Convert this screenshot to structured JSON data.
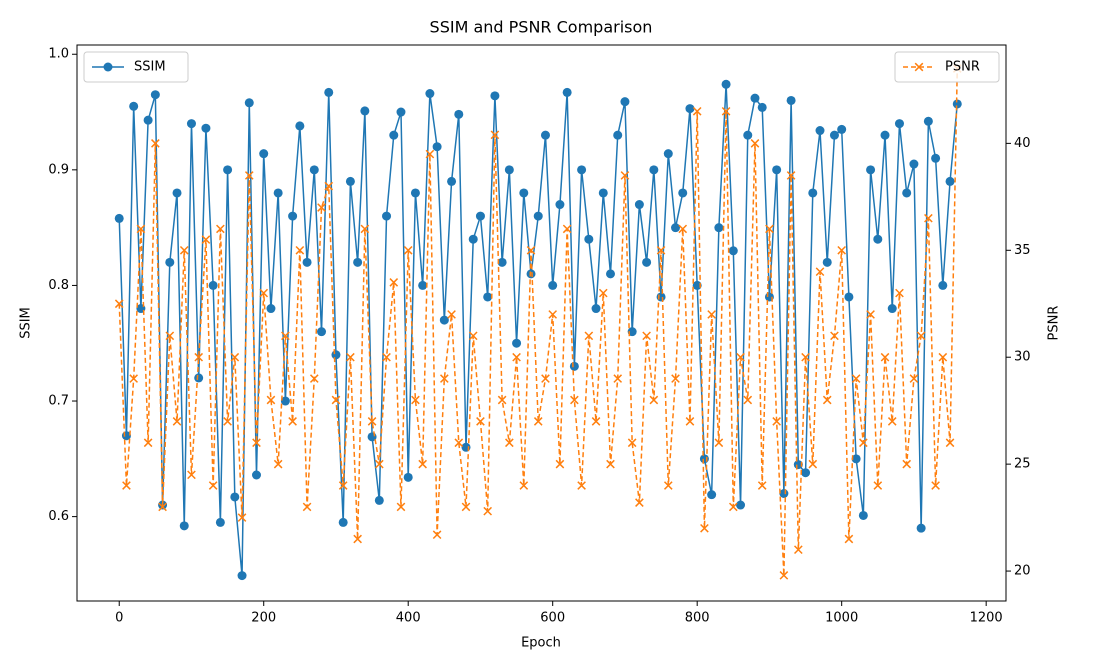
{
  "chart_data": {
    "type": "line",
    "title": "SSIM and PSNR Comparison",
    "xlabel": "Epoch",
    "ylabel": "SSIM",
    "y2label": "PSNR",
    "x": [
      0,
      10,
      20,
      30,
      40,
      50,
      60,
      70,
      80,
      90,
      100,
      110,
      120,
      130,
      140,
      150,
      160,
      170,
      180,
      190,
      200,
      210,
      220,
      230,
      240,
      250,
      260,
      270,
      280,
      290,
      300,
      310,
      320,
      330,
      340,
      350,
      360,
      370,
      380,
      390,
      400,
      410,
      420,
      430,
      440,
      450,
      460,
      470,
      480,
      490,
      500,
      510,
      520,
      530,
      540,
      550,
      560,
      570,
      580,
      590,
      600,
      610,
      620,
      630,
      640,
      650,
      660,
      670,
      680,
      690,
      700,
      710,
      720,
      730,
      740,
      750,
      760,
      770,
      780,
      790,
      800,
      810,
      820,
      830,
      840,
      850,
      860,
      870,
      880,
      890,
      900,
      910,
      920,
      930,
      940,
      950,
      960,
      970,
      980,
      990,
      1000,
      1010,
      1020,
      1030,
      1040,
      1050,
      1060,
      1070,
      1080,
      1090,
      1100,
      1110,
      1120,
      1130,
      1140,
      1150,
      1160
    ],
    "series": [
      {
        "name": "SSIM",
        "color": "#1f77b4",
        "marker": "o",
        "linestyle": "solid",
        "axis": "y",
        "legend_loc": "upper left",
        "values": [
          0.858,
          0.67,
          0.955,
          0.78,
          0.943,
          0.965,
          0.61,
          0.82,
          0.88,
          0.592,
          0.94,
          0.72,
          0.936,
          0.8,
          0.595,
          0.9,
          0.617,
          0.549,
          0.958,
          0.636,
          0.914,
          0.78,
          0.88,
          0.7,
          0.86,
          0.938,
          0.82,
          0.9,
          0.76,
          0.967,
          0.74,
          0.595,
          0.89,
          0.82,
          0.951,
          0.669,
          0.614,
          0.86,
          0.93,
          0.95,
          0.634,
          0.88,
          0.8,
          0.966,
          0.92,
          0.77,
          0.89,
          0.948,
          0.66,
          0.84,
          0.86,
          0.79,
          0.964,
          0.82,
          0.9,
          0.75,
          0.88,
          0.81,
          0.86,
          0.93,
          0.8,
          0.87,
          0.967,
          0.73,
          0.9,
          0.84,
          0.78,
          0.88,
          0.81,
          0.93,
          0.959,
          0.76,
          0.87,
          0.82,
          0.9,
          0.79,
          0.914,
          0.85,
          0.88,
          0.953,
          0.8,
          0.65,
          0.619,
          0.85,
          0.974,
          0.83,
          0.61,
          0.93,
          0.962,
          0.954,
          0.79,
          0.9,
          0.62,
          0.96,
          0.645,
          0.638,
          0.88,
          0.934,
          0.82,
          0.93,
          0.935,
          0.79,
          0.65,
          0.601,
          0.9,
          0.84,
          0.93,
          0.78,
          0.94,
          0.88,
          0.905,
          0.59,
          0.942,
          0.91,
          0.8,
          0.89,
          0.957
        ]
      },
      {
        "name": "PSNR",
        "color": "#ff7f0e",
        "marker": "x",
        "linestyle": "dashed",
        "axis": "y2",
        "legend_loc": "upper right",
        "values": [
          32.5,
          24,
          29,
          36,
          26,
          40,
          23,
          31,
          27,
          35,
          24.5,
          30,
          35.5,
          24,
          36,
          27,
          30,
          22.5,
          38.5,
          26,
          33,
          28,
          25,
          31,
          27,
          35,
          23,
          29,
          37,
          38,
          28,
          24,
          30,
          21.5,
          36,
          27,
          25,
          30,
          33.5,
          23,
          35,
          28,
          25,
          39.5,
          21.7,
          29,
          32,
          26,
          23,
          31,
          27,
          22.8,
          40.4,
          28,
          26,
          30,
          24,
          35,
          27,
          29,
          32,
          25,
          36,
          28,
          24,
          31,
          27,
          33,
          25,
          29,
          38.5,
          26,
          23.2,
          31,
          28,
          35,
          24,
          29,
          36,
          27,
          41.5,
          22,
          32,
          26,
          41.5,
          23,
          30,
          28,
          40,
          24,
          36,
          27,
          19.8,
          38.5,
          21,
          30,
          25,
          34,
          28,
          31,
          35,
          21.5,
          29,
          26,
          32,
          24,
          30,
          27,
          33,
          25,
          29,
          31,
          36.5,
          24,
          30,
          26,
          43.5
        ]
      }
    ],
    "xlim": [
      -58.45,
      1227.45
    ],
    "xticks": [
      0,
      200,
      400,
      600,
      800,
      1000,
      1200
    ],
    "ylim": [
      0.527,
      1.008
    ],
    "yticks": [
      0.6,
      0.7,
      0.8,
      0.9,
      {
        "value": 1,
        "label": "1.0"
      }
    ],
    "y2lim": [
      18.6,
      44.6
    ],
    "y2ticks": [
      20,
      25,
      30,
      35,
      40
    ],
    "grid": false
  }
}
